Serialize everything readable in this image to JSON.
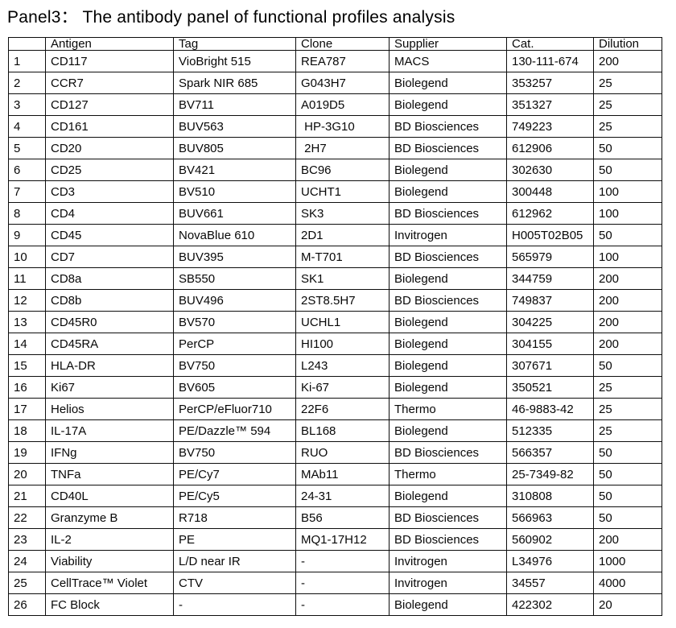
{
  "title": "Panel3： The antibody panel of functional profiles analysis",
  "table": {
    "headers": [
      "",
      "Antigen",
      "Tag",
      "Clone",
      "Supplier",
      "Cat.",
      "Dilution"
    ],
    "column_keys": [
      "row-index",
      "antigen",
      "tag",
      "clone",
      "supplier",
      "cat",
      "dilution"
    ],
    "rows": [
      [
        "1",
        "CD117",
        "VioBright 515",
        "REA787",
        "MACS",
        "130-111-674",
        "200"
      ],
      [
        "2",
        "CCR7",
        "Spark NIR 685",
        "G043H7",
        "Biolegend",
        "353257",
        "25"
      ],
      [
        "3",
        "CD127",
        "BV711",
        "A019D5",
        "Biolegend",
        "351327",
        "25"
      ],
      [
        "4",
        "CD161",
        "BUV563",
        " HP-3G10",
        "BD Biosciences",
        "749223",
        "25"
      ],
      [
        "5",
        "CD20",
        "BUV805",
        " 2H7",
        "BD Biosciences",
        "612906",
        "50"
      ],
      [
        "6",
        "CD25",
        "BV421",
        "BC96",
        "Biolegend",
        "302630",
        "50"
      ],
      [
        "7",
        "CD3",
        "BV510",
        "UCHT1",
        "Biolegend",
        "300448",
        "100"
      ],
      [
        "8",
        "CD4",
        "BUV661",
        "SK3",
        "BD Biosciences",
        "612962",
        "100"
      ],
      [
        "9",
        "CD45",
        "NovaBlue 610",
        "2D1",
        "Invitrogen",
        "H005T02B05",
        "50"
      ],
      [
        "10",
        "CD7",
        "BUV395",
        "M-T701",
        "BD Biosciences",
        "565979",
        "100"
      ],
      [
        "11",
        "CD8a",
        "SB550",
        "SK1",
        "Biolegend",
        "344759",
        "200"
      ],
      [
        "12",
        "CD8b",
        "BUV496",
        "2ST8.5H7",
        "BD Biosciences",
        "749837",
        "200"
      ],
      [
        "13",
        "CD45R0",
        "BV570",
        "UCHL1",
        "Biolegend",
        "304225",
        "200"
      ],
      [
        "14",
        "CD45RA",
        "PerCP",
        "HI100",
        "Biolegend",
        "304155",
        "200"
      ],
      [
        "15",
        "HLA-DR",
        "BV750",
        "L243",
        "Biolegend",
        "307671",
        "50"
      ],
      [
        "16",
        "Ki67",
        "BV605",
        "Ki-67",
        "Biolegend",
        "350521",
        "25"
      ],
      [
        "17",
        "Helios",
        "PerCP/eFluor710",
        "22F6",
        "Thermo",
        "46-9883-42",
        "25"
      ],
      [
        "18",
        "IL-17A",
        "PE/Dazzle™ 594",
        "BL168",
        "Biolegend",
        "512335",
        "25"
      ],
      [
        "19",
        "IFNg",
        "BV750",
        "RUO",
        "BD Biosciences",
        "566357",
        "50"
      ],
      [
        "20",
        "TNFa",
        "PE/Cy7",
        "MAb11",
        "Thermo",
        "25-7349-82",
        "50"
      ],
      [
        "21",
        "CD40L",
        "PE/Cy5",
        "24-31",
        "Biolegend",
        "310808",
        "50"
      ],
      [
        "22",
        "Granzyme B",
        "R718",
        "B56",
        "BD Biosciences",
        "566963",
        "50"
      ],
      [
        "23",
        "IL-2",
        "PE",
        "MQ1-17H12",
        "BD Biosciences",
        "560902",
        "200"
      ],
      [
        "24",
        "Viability",
        "L/D near IR",
        "-",
        "Invitrogen",
        "L34976",
        "1000"
      ],
      [
        "25",
        "CellTrace™ Violet",
        "CTV",
        "-",
        "Invitrogen",
        "34557",
        "4000"
      ],
      [
        "26",
        "FC Block",
        "-",
        "-",
        "Biolegend",
        "422302",
        "20"
      ]
    ]
  }
}
